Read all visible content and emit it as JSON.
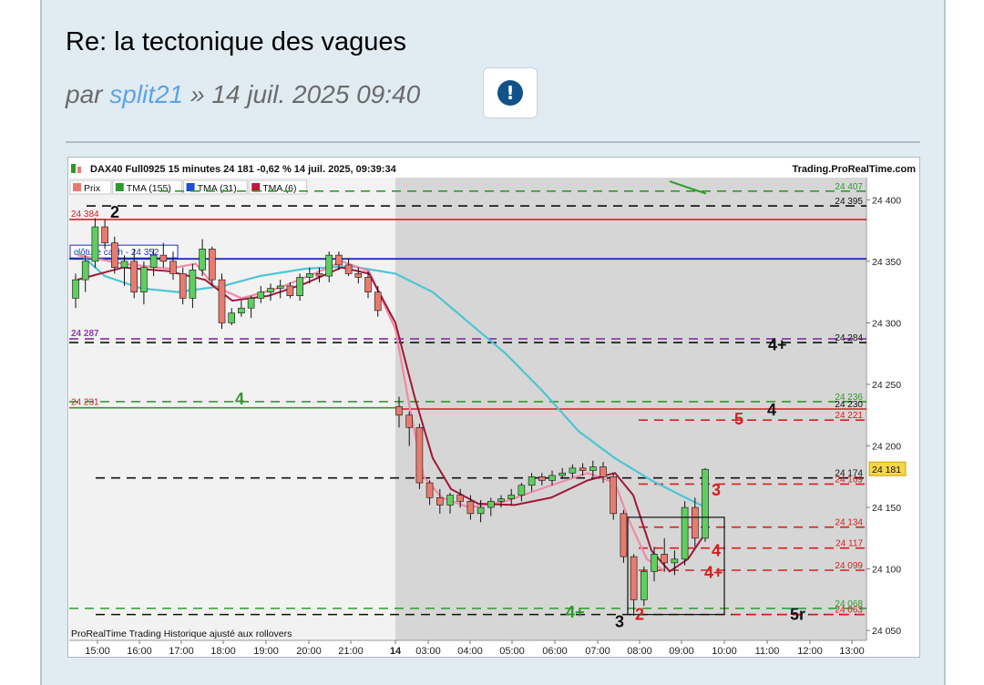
{
  "post": {
    "title": "Re: la tectonique des vagues",
    "by_prefix": "par",
    "author": "split21",
    "date": "» 14 juil. 2025 09:40",
    "report_icon": "exclamation-icon"
  },
  "chart_data": {
    "type": "candlestick",
    "header": "DAX40 Full0925 15 minutes 24 181 -0,62 % 14 juil. 2025, 09:39:34",
    "source": "Trading.ProRealTime.com",
    "legend": [
      {
        "name": "Prix",
        "color": "#e77b6f"
      },
      {
        "name": "TMA (155)",
        "color": "#2e9a2e"
      },
      {
        "name": "TMA (31)",
        "color": "#1f4bd8"
      },
      {
        "name": "TMA (6)",
        "color": "#c01840"
      }
    ],
    "footer": "ProRealTime Trading  Historique ajusté aux rollovers",
    "y_ticks": [
      "24 400",
      "24 350",
      "24 300",
      "24 250",
      "24 200",
      "24 150",
      "24 100",
      "24 050"
    ],
    "y_tick_values": [
      24400,
      24350,
      24300,
      24250,
      24200,
      24150,
      24100,
      24050
    ],
    "x_ticks": [
      "15:00",
      "16:00",
      "17:00",
      "18:00",
      "19:00",
      "20:00",
      "21:00",
      "14",
      "03:00",
      "04:00",
      "05:00",
      "06:00",
      "07:00",
      "08:00",
      "09:00",
      "10:00",
      "11:00",
      "12:00",
      "13:00"
    ],
    "ylim": [
      24042,
      24418
    ],
    "last_price": "24 181",
    "close_cash_label": "clôture cash -  24 352",
    "level_labels": {
      "left": [
        "24 384",
        "24 287",
        "24 231"
      ],
      "right": [
        "24 407",
        "24 395",
        "24 284",
        "24 236",
        "24 230",
        "24 221",
        "24 174",
        "24 169",
        "24 134",
        "24 117",
        "24 099",
        "24 068",
        "24 063"
      ]
    },
    "wave_labels": [
      "2",
      "4+",
      "4",
      "5",
      "3",
      "4",
      "4+",
      "4+",
      "3",
      "2",
      "5r"
    ],
    "candles": [
      [
        24320,
        24340,
        24312,
        24335
      ],
      [
        24335,
        24355,
        24325,
        24350
      ],
      [
        24350,
        24385,
        24345,
        24378
      ],
      [
        24378,
        24384,
        24360,
        24365
      ],
      [
        24365,
        24370,
        24340,
        24345
      ],
      [
        24345,
        24355,
        24330,
        24350
      ],
      [
        24350,
        24360,
        24320,
        24325
      ],
      [
        24325,
        24350,
        24315,
        24345
      ],
      [
        24345,
        24360,
        24338,
        24355
      ],
      [
        24355,
        24365,
        24345,
        24350
      ],
      [
        24350,
        24358,
        24335,
        24340
      ],
      [
        24340,
        24345,
        24315,
        24320
      ],
      [
        24320,
        24348,
        24312,
        24343
      ],
      [
        24343,
        24368,
        24338,
        24360
      ],
      [
        24360,
        24362,
        24330,
        24335
      ],
      [
        24335,
        24340,
        24295,
        24300
      ],
      [
        24300,
        24312,
        24298,
        24308
      ],
      [
        24308,
        24318,
        24305,
        24312
      ],
      [
        24312,
        24322,
        24304,
        24320
      ],
      [
        24320,
        24330,
        24316,
        24325
      ],
      [
        24325,
        24332,
        24318,
        24328
      ],
      [
        24328,
        24335,
        24320,
        24330
      ],
      [
        24330,
        24333,
        24320,
        24322
      ],
      [
        24322,
        24340,
        24318,
        24337
      ],
      [
        24337,
        24345,
        24332,
        24340
      ],
      [
        24340,
        24345,
        24333,
        24338
      ],
      [
        24338,
        24358,
        24333,
        24355
      ],
      [
        24355,
        24358,
        24343,
        24347
      ],
      [
        24347,
        24352,
        24338,
        24340
      ],
      [
        24340,
        24345,
        24332,
        24337
      ],
      [
        24337,
        24342,
        24320,
        24325
      ],
      [
        24325,
        24330,
        24305,
        24310
      ],
      [
        24232,
        24240,
        24215,
        24225
      ],
      [
        24225,
        24228,
        24200,
        24215
      ],
      [
        24215,
        24218,
        24165,
        24170
      ],
      [
        24170,
        24172,
        24152,
        24158
      ],
      [
        24158,
        24165,
        24145,
        24152
      ],
      [
        24152,
        24162,
        24145,
        24160
      ],
      [
        24160,
        24165,
        24150,
        24155
      ],
      [
        24155,
        24160,
        24140,
        24145
      ],
      [
        24145,
        24156,
        24138,
        24150
      ],
      [
        24150,
        24158,
        24143,
        24155
      ],
      [
        24155,
        24160,
        24150,
        24157
      ],
      [
        24157,
        24165,
        24152,
        24160
      ],
      [
        24160,
        24170,
        24155,
        24168
      ],
      [
        24168,
        24178,
        24163,
        24175
      ],
      [
        24175,
        24178,
        24168,
        24172
      ],
      [
        24172,
        24180,
        24168,
        24176
      ],
      [
        24176,
        24182,
        24173,
        24178
      ],
      [
        24178,
        24185,
        24174,
        24182
      ],
      [
        24182,
        24186,
        24176,
        24180
      ],
      [
        24180,
        24188,
        24175,
        24183
      ],
      [
        24183,
        24187,
        24170,
        24175
      ],
      [
        24175,
        24178,
        24140,
        24145
      ],
      [
        24145,
        24148,
        24105,
        24110
      ],
      [
        24110,
        24112,
        24062,
        24075
      ],
      [
        24075,
        24102,
        24070,
        24098
      ],
      [
        24098,
        24118,
        24090,
        24112
      ],
      [
        24112,
        24125,
        24098,
        24105
      ],
      [
        24105,
        24115,
        24095,
        24108
      ],
      [
        24108,
        24155,
        24103,
        24150
      ],
      [
        24150,
        24158,
        24118,
        24125
      ],
      [
        24125,
        24182,
        24122,
        24181
      ]
    ]
  }
}
